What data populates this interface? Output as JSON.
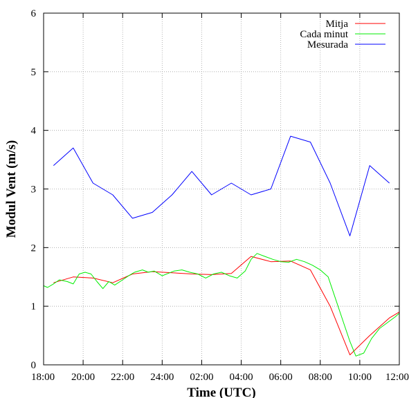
{
  "chart_data": {
    "type": "line",
    "title": "",
    "xlabel": "Time (UTC)",
    "ylabel": "Modul Vent (m/s)",
    "x_tick_labels": [
      "18:00",
      "20:00",
      "22:00",
      "24:00",
      "02:00",
      "04:00",
      "06:00",
      "08:00",
      "10:00",
      "12:00"
    ],
    "x_ticks": [
      0,
      2,
      4,
      6,
      8,
      10,
      12,
      14,
      16,
      18
    ],
    "xlim": [
      0,
      18
    ],
    "ylim": [
      0,
      6
    ],
    "y_ticks": [
      0,
      1,
      2,
      3,
      4,
      5,
      6
    ],
    "y_tick_labels": [
      "0",
      "1",
      "2",
      "3",
      "4",
      "5",
      "6"
    ],
    "grid": true,
    "legend_position": "top-right",
    "series": [
      {
        "name": "Mitja",
        "color": "#ff0000",
        "x": [
          0.5,
          1.5,
          2.5,
          3.5,
          4.5,
          5.5,
          6.5,
          7.5,
          8.5,
          9.5,
          10.5,
          11.5,
          12.5,
          13.5,
          14.5,
          15.5,
          16.5,
          17.5,
          18.0
        ],
        "y": [
          1.4,
          1.5,
          1.48,
          1.4,
          1.55,
          1.59,
          1.57,
          1.55,
          1.54,
          1.56,
          1.85,
          1.76,
          1.77,
          1.62,
          1.0,
          0.17,
          0.5,
          0.8,
          0.9
        ]
      },
      {
        "name": "Cada minut",
        "color": "#00ee00",
        "x": [
          0.0,
          0.2,
          0.5,
          0.8,
          1.2,
          1.5,
          1.8,
          2.1,
          2.4,
          2.7,
          3.0,
          3.3,
          3.6,
          4.0,
          4.3,
          4.6,
          5.0,
          5.3,
          5.6,
          6.0,
          6.3,
          6.6,
          7.0,
          7.4,
          7.8,
          8.2,
          8.6,
          9.0,
          9.4,
          9.8,
          10.2,
          10.5,
          10.8,
          11.2,
          11.6,
          12.0,
          12.4,
          12.8,
          13.2,
          13.6,
          14.0,
          14.4,
          14.8,
          15.2,
          15.5,
          15.8,
          16.2,
          16.6,
          17.0,
          17.4,
          17.8,
          18.0
        ],
        "y": [
          1.35,
          1.32,
          1.38,
          1.45,
          1.42,
          1.38,
          1.55,
          1.58,
          1.55,
          1.42,
          1.3,
          1.42,
          1.36,
          1.45,
          1.52,
          1.58,
          1.62,
          1.58,
          1.6,
          1.52,
          1.56,
          1.6,
          1.62,
          1.58,
          1.55,
          1.48,
          1.55,
          1.58,
          1.52,
          1.48,
          1.6,
          1.8,
          1.9,
          1.85,
          1.8,
          1.76,
          1.75,
          1.8,
          1.76,
          1.7,
          1.62,
          1.5,
          1.1,
          0.7,
          0.4,
          0.15,
          0.2,
          0.45,
          0.62,
          0.72,
          0.82,
          0.88
        ]
      },
      {
        "name": "Mesurada",
        "color": "#0000ff",
        "x": [
          0.5,
          1.5,
          2.5,
          3.5,
          4.5,
          5.5,
          6.5,
          7.5,
          8.5,
          9.5,
          10.5,
          11.5,
          12.5,
          13.5,
          14.5,
          15.5,
          16.5,
          17.5
        ],
        "y": [
          3.4,
          3.7,
          3.1,
          2.9,
          2.5,
          2.6,
          2.9,
          3.3,
          2.9,
          3.1,
          2.9,
          3.0,
          3.9,
          3.8,
          3.1,
          2.2,
          3.4,
          3.1
        ]
      }
    ]
  }
}
